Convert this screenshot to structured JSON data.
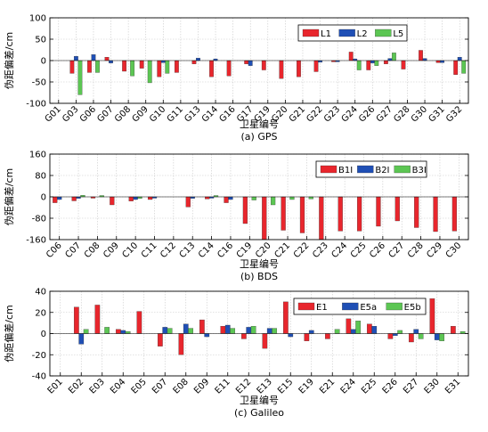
{
  "chart_data": [
    {
      "type": "bar",
      "caption": "(a) GPS",
      "xlabel": "卫星编号",
      "ylabel": "伪距偏差/cm",
      "ylim": [
        -100,
        100
      ],
      "yticks": [
        -100,
        -50,
        0,
        50,
        100
      ],
      "grid": true,
      "legend_position": "top-right",
      "colors": [
        "#e8262d",
        "#1f4fb5",
        "#5cc653"
      ],
      "categories": [
        "G01",
        "G03",
        "G06",
        "G07",
        "G08",
        "G09",
        "G10",
        "G11",
        "G13",
        "G14",
        "G16",
        "G17",
        "G19",
        "G20",
        "G21",
        "G22",
        "G23",
        "G24",
        "G26",
        "G27",
        "G28",
        "G30",
        "G31",
        "G32"
      ],
      "series": [
        {
          "name": "L1",
          "values": [
            0,
            -30,
            -28,
            8,
            -25,
            -18,
            -38,
            -28,
            -8,
            -38,
            -36,
            -8,
            -22,
            -42,
            -38,
            -26,
            -3,
            20,
            -22,
            -8,
            -20,
            24,
            -5,
            -33
          ]
        },
        {
          "name": "L2",
          "values": [
            0,
            10,
            14,
            -6,
            0,
            0,
            -5,
            0,
            6,
            4,
            0,
            -12,
            0,
            0,
            0,
            -4,
            -3,
            4,
            -6,
            5,
            0,
            5,
            -5,
            8
          ]
        },
        {
          "name": "L5",
          "values": [
            0,
            -80,
            -28,
            0,
            -36,
            -52,
            -30,
            0,
            0,
            0,
            0,
            0,
            0,
            0,
            0,
            0,
            0,
            -22,
            -12,
            18,
            0,
            0,
            0,
            -30
          ]
        }
      ]
    },
    {
      "type": "bar",
      "caption": "(b) BDS",
      "xlabel": "卫星编号",
      "ylabel": "伪距偏差/cm",
      "ylim": [
        -160,
        160
      ],
      "yticks": [
        -160,
        -80,
        0,
        80,
        160
      ],
      "grid": true,
      "legend_position": "top-right",
      "colors": [
        "#e8262d",
        "#1f4fb5",
        "#5cc653"
      ],
      "categories": [
        "C06",
        "C07",
        "C08",
        "C09",
        "C10",
        "C11",
        "C12",
        "C13",
        "C14",
        "C16",
        "C19",
        "C20",
        "C21",
        "C22",
        "C23",
        "C24",
        "C25",
        "C26",
        "C27",
        "C28",
        "C29",
        "C30"
      ],
      "series": [
        {
          "name": "B1I",
          "values": [
            -22,
            -15,
            -5,
            -30,
            -16,
            -10,
            0,
            -38,
            -8,
            -22,
            -100,
            -160,
            -125,
            -135,
            -160,
            -128,
            -128,
            -110,
            -90,
            -115,
            -130,
            -128
          ]
        },
        {
          "name": "B2I",
          "values": [
            -10,
            -6,
            0,
            0,
            -10,
            -5,
            0,
            -6,
            -5,
            -10,
            0,
            0,
            0,
            0,
            0,
            0,
            0,
            0,
            0,
            0,
            0,
            0
          ]
        },
        {
          "name": "B3I",
          "values": [
            0,
            6,
            5,
            0,
            -6,
            0,
            0,
            0,
            5,
            0,
            -12,
            -30,
            -10,
            -8,
            0,
            0,
            0,
            0,
            0,
            0,
            0,
            0
          ]
        }
      ]
    },
    {
      "type": "bar",
      "caption": "(c) Galileo",
      "xlabel": "卫星编号",
      "ylabel": "伪距偏差/cm",
      "ylim": [
        -40,
        40
      ],
      "yticks": [
        -40,
        -20,
        0,
        20,
        40
      ],
      "grid": true,
      "legend_position": "top-right",
      "colors": [
        "#e8262d",
        "#1f4fb5",
        "#5cc653"
      ],
      "categories": [
        "E01",
        "E02",
        "E03",
        "E04",
        "E05",
        "E07",
        "E08",
        "E09",
        "E11",
        "E12",
        "E13",
        "E15",
        "E19",
        "E21",
        "E24",
        "E25",
        "E26",
        "E27",
        "E30",
        "E31"
      ],
      "series": [
        {
          "name": "E1",
          "values": [
            0,
            25,
            27,
            4,
            21,
            -12,
            -20,
            13,
            7,
            -5,
            -14,
            30,
            -7,
            -5,
            14,
            9,
            -5,
            -8,
            33,
            7
          ]
        },
        {
          "name": "E5a",
          "values": [
            0,
            -10,
            0,
            3,
            0,
            6,
            9,
            -3,
            8,
            6,
            5,
            -3,
            3,
            0,
            4,
            7,
            -2,
            4,
            -6,
            0
          ]
        },
        {
          "name": "E5b",
          "values": [
            0,
            4,
            6,
            2,
            0,
            5,
            5,
            0,
            5,
            7,
            5,
            0,
            0,
            4,
            12,
            0,
            3,
            -5,
            -7,
            2
          ]
        }
      ]
    }
  ]
}
